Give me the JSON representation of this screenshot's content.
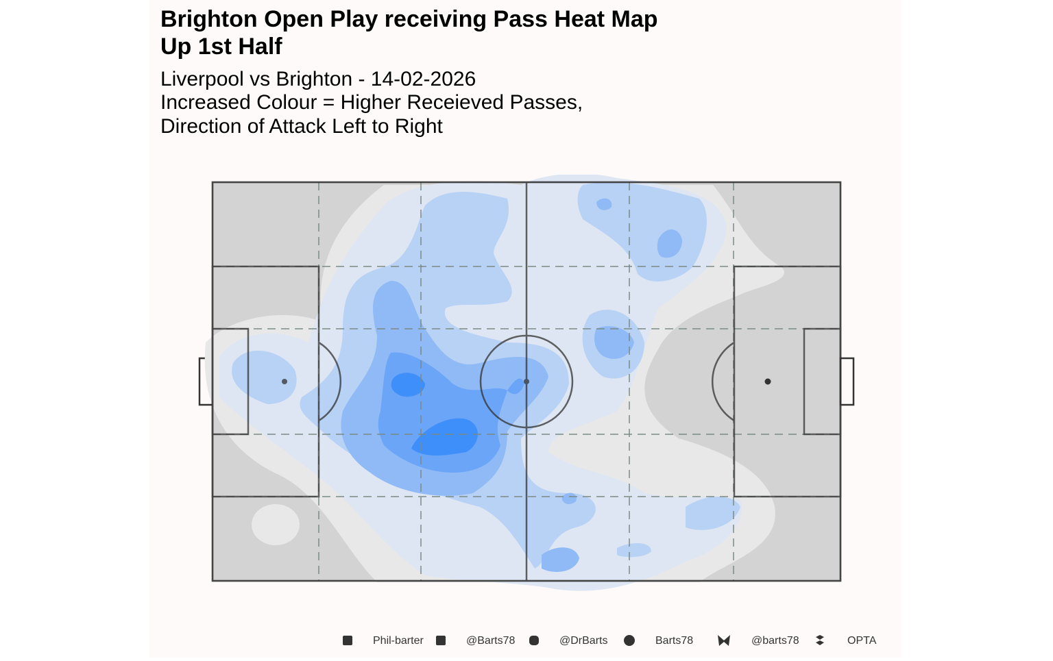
{
  "header": {
    "title": [
      "Brighton Open Play receiving Pass Heat Map",
      "Up 1st Half"
    ],
    "subtitle": [
      "Liverpool vs Brighton - 14-02-2026",
      "Increased Colour = Higher Receieved Passes,",
      "Direction of Attack Left to Right"
    ]
  },
  "footer": {
    "credits": [
      "Phil-barter",
      "@Barts78",
      "@DrBarts",
      "Barts78",
      "@barts78",
      "OPTA"
    ]
  }
}
